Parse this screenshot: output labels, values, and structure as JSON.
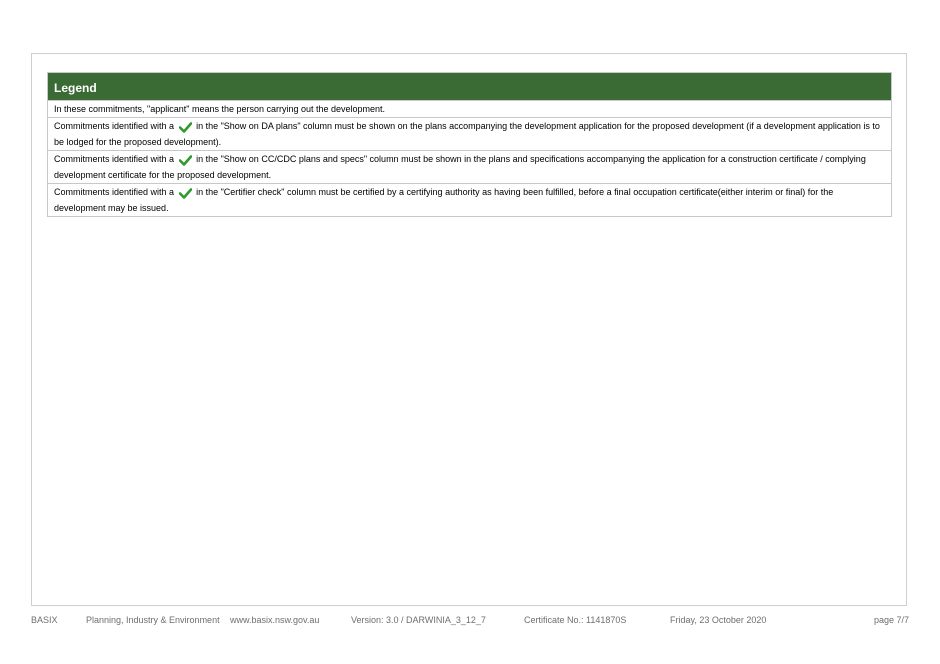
{
  "legend": {
    "title": "Legend",
    "row1": "In these commitments, \"applicant\" means the person carrying out the development.",
    "row2_pre": "Commitments identified with a",
    "row2_post": "in the \"Show on DA plans\" column must be shown on the plans accompanying the development application for the proposed development (if a development application is to be lodged for the proposed development).",
    "row3_pre": "Commitments identified with a",
    "row3_post": "in the \"Show on CC/CDC plans and specs\" column must be shown in the plans and specifications accompanying the application for a construction certificate / complying development certificate for the proposed development.",
    "row4_pre": "Commitments identified with a",
    "row4_post": "in the \"Certifier check\" column must be certified by a certifying authority as having been fulfilled, before a final occupation certificate(either interim or final) for the development may be issued.",
    "check_icon": "check-icon",
    "check_color": "#2e9a2e",
    "header_color": "#3a6b34"
  },
  "footer": {
    "basix": "BASIX",
    "department": "Planning, Industry & Environment",
    "website": "www.basix.nsw.gov.au",
    "version": "Version: 3.0 / DARWINIA_3_12_7",
    "certificate": "Certificate No.: 1141870S",
    "date": "Friday, 23 October 2020",
    "page": "page 7/7"
  }
}
